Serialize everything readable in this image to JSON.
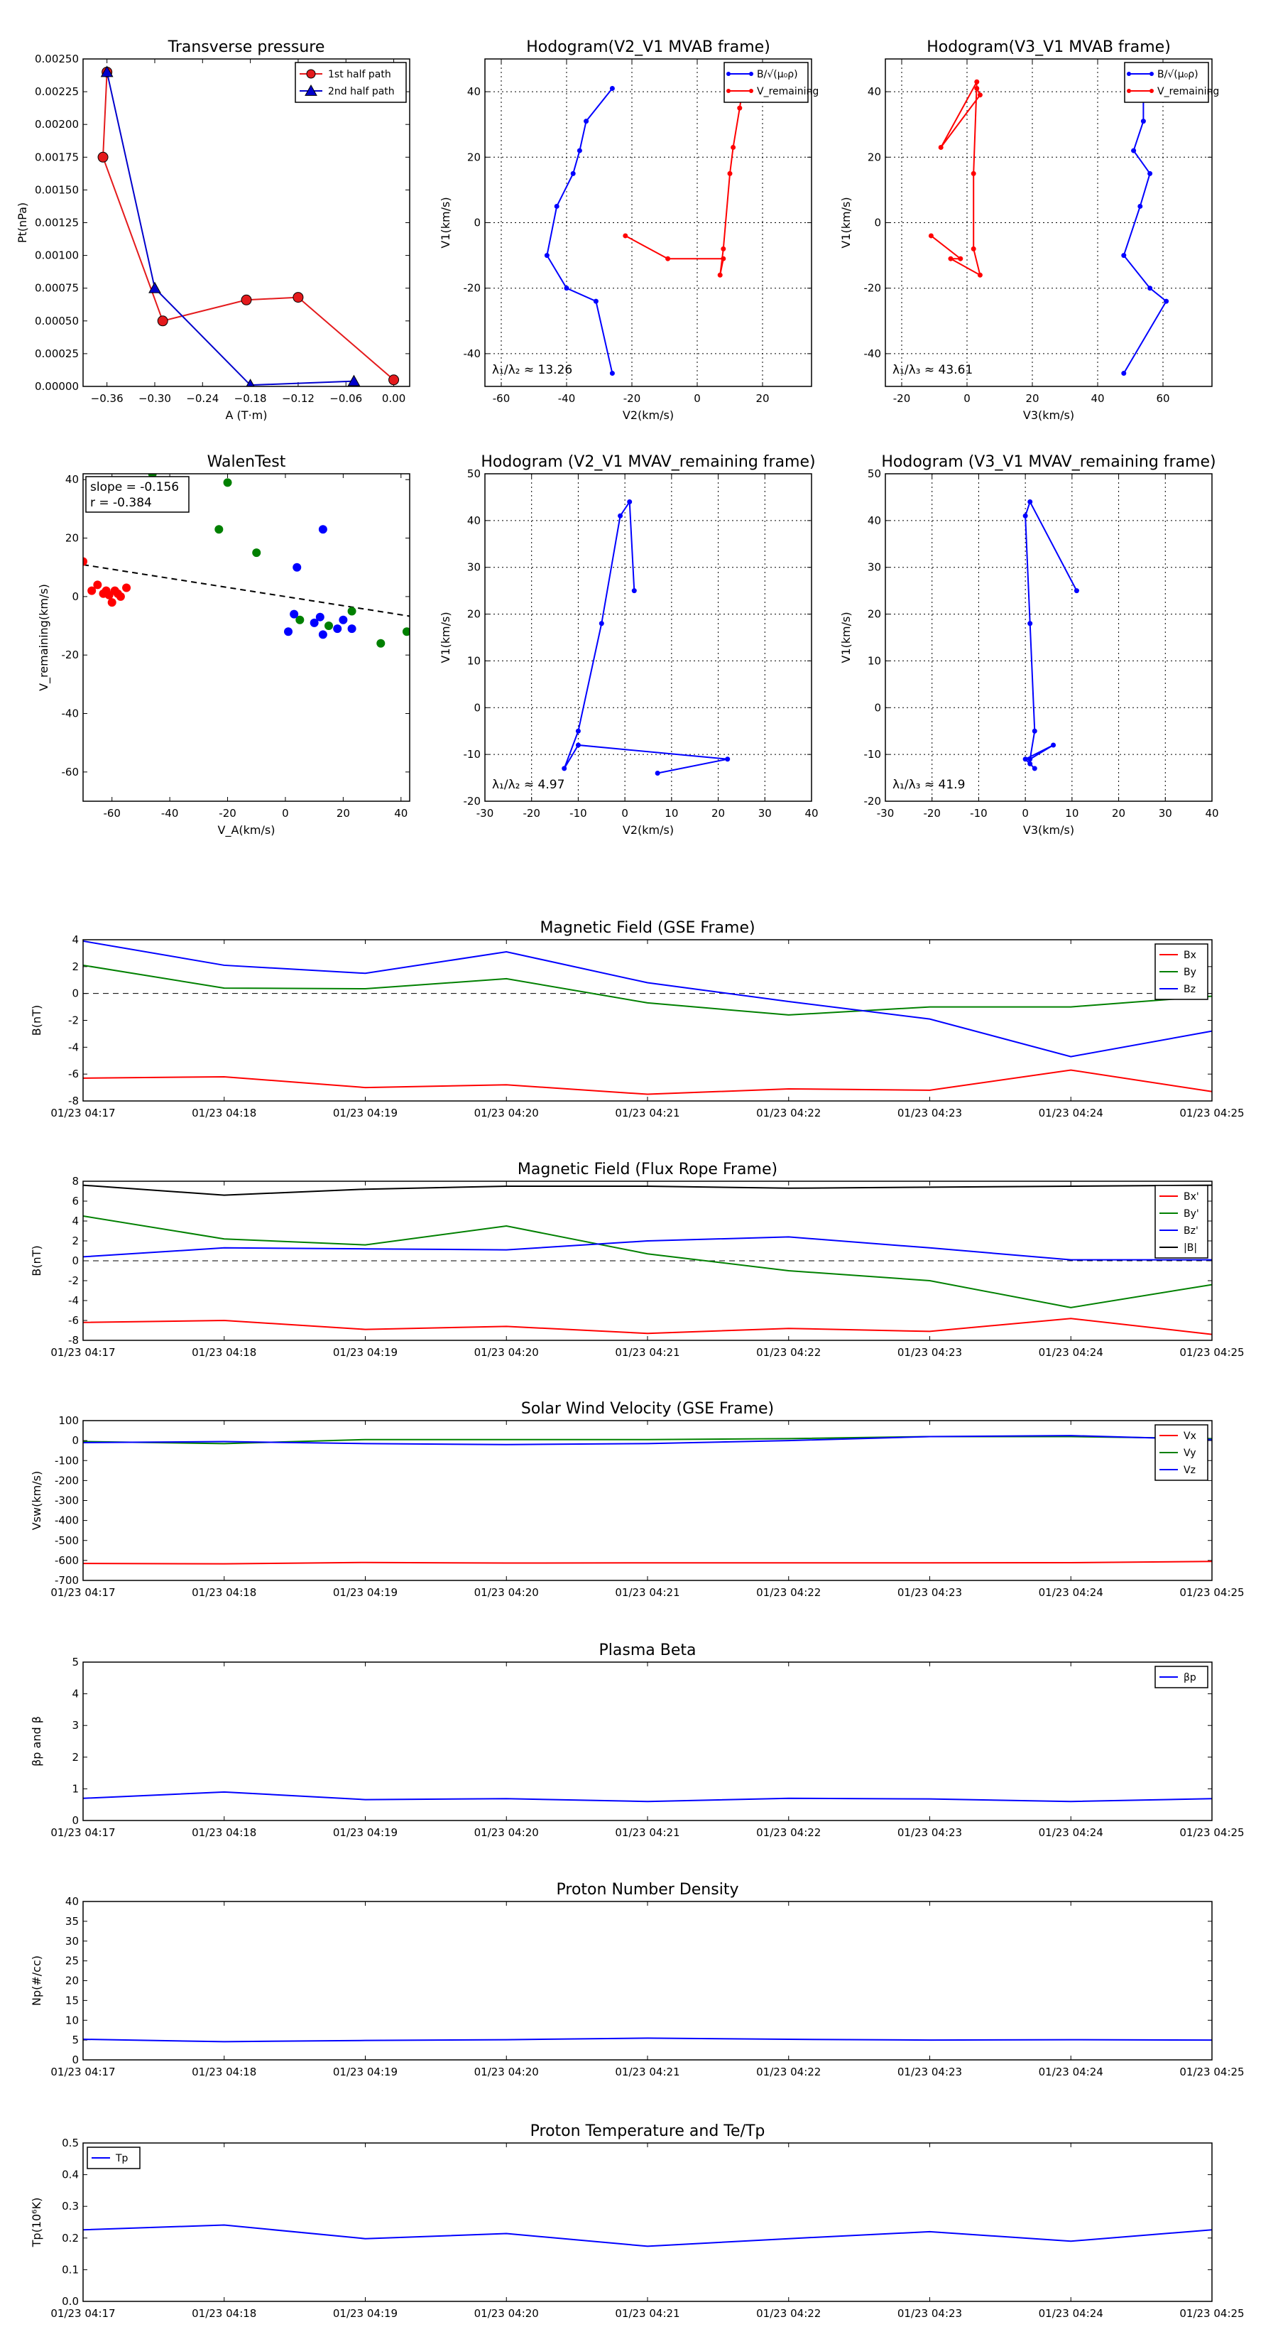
{
  "chart_data": [
    {
      "id": "pt",
      "type": "scatter",
      "title": "Transverse pressure",
      "xlabel": "A (T·m)",
      "ylabel": "Pt(nPa)",
      "xlim": [
        -0.39,
        0.02
      ],
      "ylim": [
        0,
        0.0025
      ],
      "xticks": [
        -0.36,
        -0.3,
        -0.24,
        -0.18,
        -0.12,
        -0.06,
        0.0
      ],
      "xtick_labels": [
        "−0.36",
        "−0.30",
        "−0.24",
        "−0.18",
        "−0.12",
        "−0.06",
        "0.00"
      ],
      "yticks": [
        0,
        0.00025,
        0.0005,
        0.00075,
        0.001,
        0.00125,
        0.0015,
        0.00175,
        0.002,
        0.00225,
        0.0025
      ],
      "ytick_labels": [
        "0.00000",
        "0.00025",
        "0.00050",
        "0.00075",
        "0.00100",
        "0.00125",
        "0.00150",
        "0.00175",
        "0.00200",
        "0.00225",
        "0.00250"
      ],
      "grid": false,
      "legend": "top-right",
      "series": [
        {
          "name": "1st half path",
          "color": "#e41a1c",
          "marker": "circle",
          "x": [
            0.0,
            -0.12,
            -0.185,
            -0.29,
            -0.365,
            -0.36
          ],
          "y": [
            5e-05,
            0.00068,
            0.00066,
            0.0005,
            0.00175,
            0.0024
          ]
        },
        {
          "name": "2nd half path",
          "color": "#0000cc",
          "marker": "triangle",
          "x": [
            -0.36,
            -0.3,
            -0.18,
            -0.05
          ],
          "y": [
            0.0024,
            0.00075,
            1e-05,
            4e-05
          ]
        }
      ]
    },
    {
      "id": "h_v2_mvab",
      "type": "line",
      "title": "Hodogram(V2_V1 MVAB frame)",
      "xlabel": "V2(km/s)",
      "ylabel": "V1(km/s)",
      "xlim": [
        -65,
        35
      ],
      "ylim": [
        -50,
        50
      ],
      "xticks": [
        -60,
        -40,
        -20,
        0,
        20
      ],
      "yticks": [
        -40,
        -20,
        0,
        20,
        40
      ],
      "grid": true,
      "legend": "top-right",
      "annotation": "λ₁/λ₂ ≈ 13.26",
      "series": [
        {
          "name": "B/√(μ₀ρ)",
          "color": "#0000ff",
          "x": [
            -26,
            -31,
            -40,
            -46,
            -43,
            -38,
            -36,
            -34,
            -26
          ],
          "y": [
            -46,
            -24,
            -20,
            -10,
            5,
            15,
            22,
            31,
            41
          ]
        },
        {
          "name": "V_remaining",
          "color": "#ff0000",
          "x": [
            -22,
            -9,
            8,
            7,
            8,
            10,
            11,
            13,
            15
          ],
          "y": [
            -4,
            -11,
            -11,
            -16,
            -8,
            15,
            23,
            35,
            48
          ]
        }
      ]
    },
    {
      "id": "h_v3_mvab",
      "type": "line",
      "title": "Hodogram(V3_V1 MVAB frame)",
      "xlabel": "V3(km/s)",
      "ylabel": "V1(km/s)",
      "xlim": [
        -25,
        75
      ],
      "ylim": [
        -50,
        50
      ],
      "xticks": [
        -20,
        0,
        20,
        40,
        60
      ],
      "yticks": [
        -40,
        -20,
        0,
        20,
        40
      ],
      "grid": true,
      "legend": "top-right",
      "annotation": "λ₁/λ₃ ≈ 43.61",
      "series": [
        {
          "name": "B/√(μ₀ρ)",
          "color": "#0000ff",
          "x": [
            48,
            61,
            56,
            48,
            53,
            56,
            51,
            54,
            54
          ],
          "y": [
            -46,
            -24,
            -20,
            -10,
            5,
            15,
            22,
            31,
            41
          ]
        },
        {
          "name": "V_remaining",
          "color": "#ff0000",
          "x": [
            -11,
            -2,
            -5,
            4,
            2,
            2,
            3,
            -8,
            4,
            3
          ],
          "y": [
            -4,
            -11,
            -11,
            -16,
            -8,
            15,
            43,
            23,
            39,
            41
          ]
        }
      ]
    },
    {
      "id": "walen",
      "type": "scatter",
      "title": "WalenTest",
      "xlabel": "V_A(km/s)",
      "ylabel": "V_remaining(km/s)",
      "xlim": [
        -70,
        43
      ],
      "ylim": [
        -70,
        42
      ],
      "xticks": [
        -60,
        -40,
        -20,
        0,
        20,
        40
      ],
      "yticks": [
        -60,
        -40,
        -20,
        0,
        20,
        40
      ],
      "grid": false,
      "annotation_lines": [
        "slope = -0.156",
        "r = -0.384"
      ],
      "fit": {
        "slope": -0.156,
        "x": [
          -70,
          43
        ],
        "y": [
          10.9,
          -6.7
        ]
      },
      "series": [
        {
          "name": "",
          "color": "#ff0000",
          "x": [
            -70,
            -67,
            -65,
            -63,
            -62,
            -61,
            -60,
            -59,
            -58,
            -57,
            -55
          ],
          "y": [
            12,
            2,
            4,
            1,
            2,
            0.5,
            -2,
            2,
            1,
            0,
            3
          ]
        },
        {
          "name": "",
          "color": "#008000",
          "x": [
            -46,
            -20,
            -23,
            -10,
            5,
            23,
            33,
            42,
            15
          ],
          "y": [
            42,
            39,
            23,
            15,
            -8,
            -5,
            -16,
            -12,
            -10
          ]
        },
        {
          "name": "",
          "color": "#0000ff",
          "x": [
            13,
            4,
            3,
            1,
            10,
            12,
            13,
            18,
            20,
            23
          ],
          "y": [
            23,
            10,
            -6,
            -12,
            -9,
            -7,
            -13,
            -11,
            -8,
            -11
          ]
        }
      ]
    },
    {
      "id": "h_v2_mvav",
      "type": "line",
      "title": "Hodogram (V2_V1 MVAV_remaining frame)",
      "xlabel": "V2(km/s)",
      "ylabel": "V1(km/s)",
      "xlim": [
        -30,
        40
      ],
      "ylim": [
        -20,
        50
      ],
      "xticks": [
        -30,
        -20,
        -10,
        0,
        10,
        20,
        30,
        40
      ],
      "yticks": [
        -20,
        -10,
        0,
        10,
        20,
        30,
        40,
        50
      ],
      "grid": true,
      "annotation": "λ₁/λ₂ ≈ 4.97",
      "series": [
        {
          "name": "",
          "color": "#0000ff",
          "x": [
            7,
            22,
            -10,
            -13,
            -10,
            -5,
            -1,
            1,
            2
          ],
          "y": [
            -14,
            -11,
            -8,
            -13,
            -5,
            18,
            41,
            44,
            25
          ]
        }
      ]
    },
    {
      "id": "h_v3_mvav",
      "type": "line",
      "title": "Hodogram (V3_V1 MVAV_remaining frame)",
      "xlabel": "V3(km/s)",
      "ylabel": "V1(km/s)",
      "xlim": [
        -30,
        40
      ],
      "ylim": [
        -20,
        50
      ],
      "xticks": [
        -30,
        -20,
        -10,
        0,
        10,
        20,
        30,
        40
      ],
      "yticks": [
        -20,
        -10,
        0,
        10,
        20,
        30,
        40,
        50
      ],
      "grid": true,
      "annotation": "λ₁/λ₃ ≈ 41.9",
      "series": [
        {
          "name": "",
          "color": "#0000ff",
          "x": [
            2,
            1,
            0,
            6,
            1,
            2,
            1,
            0,
            1,
            11
          ],
          "y": [
            -13,
            -12,
            -11,
            -8,
            -11,
            -5,
            18,
            41,
            44,
            25
          ]
        }
      ]
    },
    {
      "id": "b_gse",
      "type": "line",
      "title": "Magnetic Field (GSE Frame)",
      "xlabel": "",
      "ylabel": "B(nT)",
      "categories": [
        "01/23 04:17",
        "01/23 04:18",
        "01/23 04:19",
        "01/23 04:20",
        "01/23 04:21",
        "01/23 04:22",
        "01/23 04:23",
        "01/23 04:24",
        "01/23 04:25"
      ],
      "ylim": [
        -8,
        4
      ],
      "yticks": [
        -8,
        -6,
        -4,
        -2,
        0,
        2,
        4
      ],
      "zero_line": true,
      "legend": "top-right",
      "series": [
        {
          "name": "Bx",
          "color": "#ff0000",
          "values": [
            -6.3,
            -6.2,
            -7.0,
            -6.8,
            -7.5,
            -7.1,
            -7.2,
            -5.7,
            -7.3
          ]
        },
        {
          "name": "By",
          "color": "#008000",
          "values": [
            2.1,
            0.4,
            0.35,
            1.1,
            -0.7,
            -1.6,
            -1.0,
            -1.0,
            -0.2
          ]
        },
        {
          "name": "Bz",
          "color": "#0000ff",
          "values": [
            3.9,
            2.1,
            1.5,
            3.1,
            0.8,
            -0.6,
            -1.9,
            -4.7,
            -2.8
          ]
        }
      ]
    },
    {
      "id": "b_fr",
      "type": "line",
      "title": "Magnetic Field (Flux Rope Frame)",
      "xlabel": "",
      "ylabel": "B(nT)",
      "categories": [
        "01/23 04:17",
        "01/23 04:18",
        "01/23 04:19",
        "01/23 04:20",
        "01/23 04:21",
        "01/23 04:22",
        "01/23 04:23",
        "01/23 04:24",
        "01/23 04:25"
      ],
      "ylim": [
        -8,
        8
      ],
      "yticks": [
        -8,
        -6,
        -4,
        -2,
        0,
        2,
        4,
        6,
        8
      ],
      "zero_line": true,
      "legend": "top-right",
      "series": [
        {
          "name": "Bx'",
          "color": "#ff0000",
          "values": [
            -6.2,
            -6.0,
            -6.9,
            -6.6,
            -7.3,
            -6.8,
            -7.1,
            -5.8,
            -7.4
          ]
        },
        {
          "name": "By'",
          "color": "#008000",
          "values": [
            4.5,
            2.2,
            1.6,
            3.5,
            0.7,
            -1.0,
            -2.0,
            -4.7,
            -2.4
          ]
        },
        {
          "name": "Bz'",
          "color": "#0000ff",
          "values": [
            0.4,
            1.3,
            1.2,
            1.1,
            2.0,
            2.4,
            1.3,
            0.1,
            0.1
          ]
        },
        {
          "name": "|B|",
          "color": "#000000",
          "values": [
            7.6,
            6.6,
            7.2,
            7.5,
            7.5,
            7.3,
            7.4,
            7.5,
            7.6
          ]
        }
      ]
    },
    {
      "id": "vsw",
      "type": "line",
      "title": "Solar Wind Velocity (GSE Frame)",
      "xlabel": "",
      "ylabel": "Vsw(km/s)",
      "categories": [
        "01/23 04:17",
        "01/23 04:18",
        "01/23 04:19",
        "01/23 04:20",
        "01/23 04:21",
        "01/23 04:22",
        "01/23 04:23",
        "01/23 04:24",
        "01/23 04:25"
      ],
      "ylim": [
        -700,
        100
      ],
      "yticks": [
        -700,
        -600,
        -500,
        -400,
        -300,
        -200,
        -100,
        0,
        100
      ],
      "legend": "top-right",
      "series": [
        {
          "name": "Vx",
          "color": "#ff0000",
          "values": [
            -615,
            -617,
            -610,
            -613,
            -612,
            -612,
            -612,
            -611,
            -605
          ]
        },
        {
          "name": "Vy",
          "color": "#008000",
          "values": [
            -5,
            -15,
            5,
            5,
            5,
            10,
            20,
            20,
            10
          ]
        },
        {
          "name": "Vz",
          "color": "#0000ff",
          "values": [
            -10,
            -5,
            -15,
            -20,
            -15,
            0,
            20,
            25,
            5
          ]
        }
      ]
    },
    {
      "id": "beta",
      "type": "line",
      "title": "Plasma Beta",
      "xlabel": "",
      "ylabel": "βp and β",
      "categories": [
        "01/23 04:17",
        "01/23 04:18",
        "01/23 04:19",
        "01/23 04:20",
        "01/23 04:21",
        "01/23 04:22",
        "01/23 04:23",
        "01/23 04:24",
        "01/23 04:25"
      ],
      "ylim": [
        0,
        5
      ],
      "yticks": [
        0,
        1,
        2,
        3,
        4,
        5
      ],
      "legend": "top-right",
      "series": [
        {
          "name": "βp",
          "color": "#0000ff",
          "values": [
            0.7,
            0.9,
            0.66,
            0.69,
            0.6,
            0.7,
            0.68,
            0.6,
            0.69
          ]
        }
      ]
    },
    {
      "id": "np",
      "type": "line",
      "title": "Proton Number Density",
      "xlabel": "",
      "ylabel": "Np(#/cc)",
      "categories": [
        "01/23 04:17",
        "01/23 04:18",
        "01/23 04:19",
        "01/23 04:20",
        "01/23 04:21",
        "01/23 04:22",
        "01/23 04:23",
        "01/23 04:24",
        "01/23 04:25"
      ],
      "ylim": [
        0,
        40
      ],
      "yticks": [
        0,
        5,
        10,
        15,
        20,
        25,
        30,
        35,
        40
      ],
      "series": [
        {
          "name": "",
          "color": "#0000ff",
          "values": [
            5.2,
            4.6,
            4.9,
            5.1,
            5.5,
            5.2,
            5.0,
            5.1,
            5.0
          ]
        }
      ]
    },
    {
      "id": "tp",
      "type": "line",
      "title": "Proton Temperature and Te/Tp",
      "xlabel": "",
      "ylabel": "Tp(10⁶K)",
      "categories": [
        "01/23 04:17",
        "01/23 04:18",
        "01/23 04:19",
        "01/23 04:20",
        "01/23 04:21",
        "01/23 04:22",
        "01/23 04:23",
        "01/23 04:24",
        "01/23 04:25"
      ],
      "ylim": [
        0,
        0.5
      ],
      "yticks": [
        0,
        0.1,
        0.2,
        0.3,
        0.4,
        0.5
      ],
      "ytick_labels": [
        "0.0",
        "0.1",
        "0.2",
        "0.3",
        "0.4",
        "0.5"
      ],
      "legend": "top-left",
      "series": [
        {
          "name": "Tp",
          "color": "#0000ff",
          "values": [
            0.226,
            0.241,
            0.198,
            0.214,
            0.174,
            0.198,
            0.22,
            0.19,
            0.226
          ]
        }
      ]
    }
  ]
}
